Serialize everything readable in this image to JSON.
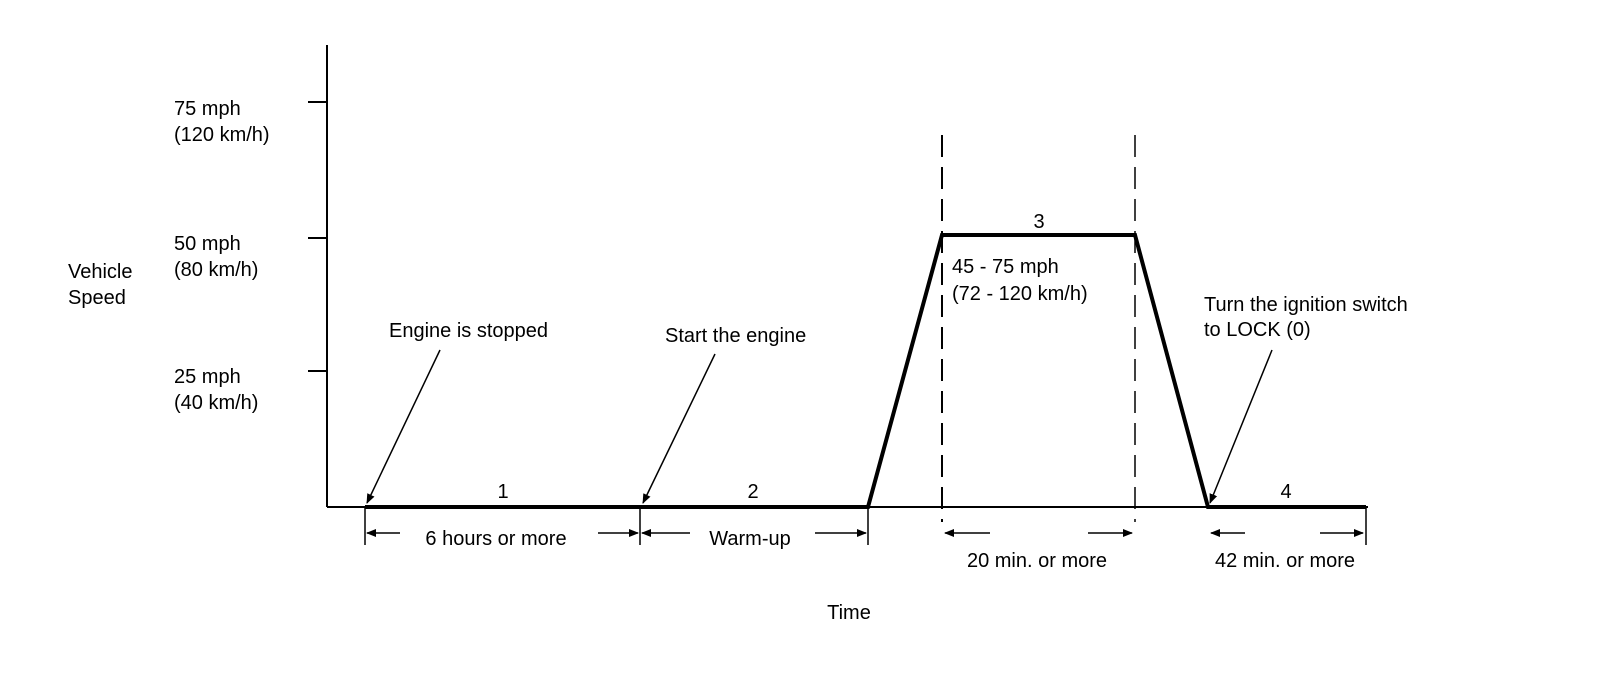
{
  "y_axis": {
    "title": [
      "Vehicle",
      "Speed"
    ],
    "ticks": [
      {
        "mph": "75 mph",
        "kmh": "(120 km/h)"
      },
      {
        "mph": "50 mph",
        "kmh": "(80 km/h)"
      },
      {
        "mph": "25 mph",
        "kmh": "(40 km/h)"
      }
    ]
  },
  "x_axis": {
    "title": "Time"
  },
  "phases": [
    {
      "number": "1",
      "duration": "6 hours or more"
    },
    {
      "number": "2",
      "duration": "Warm-up"
    },
    {
      "number": "3",
      "speed_range": [
        "45 - 75 mph",
        "(72 - 120 km/h)"
      ],
      "duration": "20 min. or more"
    },
    {
      "number": "4",
      "duration": "42 min. or more"
    }
  ],
  "callouts": {
    "engine_stopped": "Engine is stopped",
    "start_engine": "Start the engine",
    "ignition_lock": [
      "Turn the ignition switch",
      "to LOCK (0)"
    ]
  }
}
